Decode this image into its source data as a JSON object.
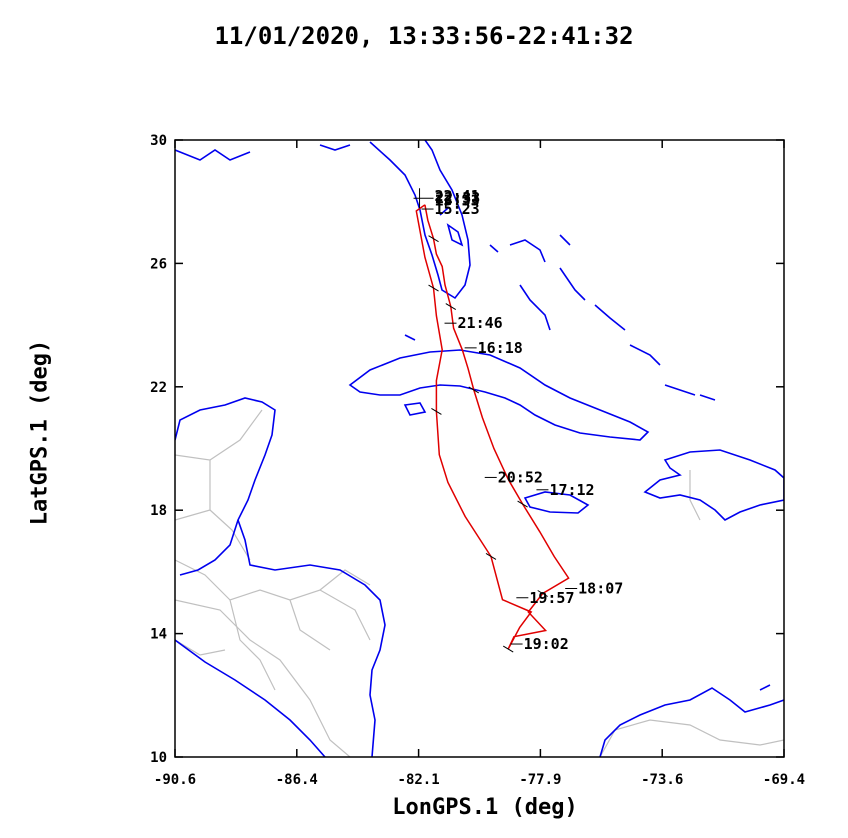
{
  "title": "11/01/2020, 13:33:56-22:41:32",
  "xlabel": "LonGPS.1 (deg)",
  "ylabel": "LatGPS.1 (deg)",
  "colors": {
    "track": "#e00000",
    "coastline": "#0000ee",
    "borders": "#c0c0c0",
    "frame": "#000000"
  },
  "chart_data": {
    "type": "line",
    "title": "11/01/2020, 13:33:56-22:41:32",
    "xlabel": "LonGPS.1 (deg)",
    "ylabel": "LatGPS.1 (deg)",
    "xlim": [
      -90.6,
      -69.4
    ],
    "ylim": [
      10,
      30
    ],
    "xticks": [
      "-90.6",
      "-86.4",
      "-82.1",
      "-77.9",
      "-73.6",
      "-69.4"
    ],
    "yticks": [
      "30",
      "26",
      "22",
      "18",
      "14",
      "10"
    ],
    "track": [
      [
        -81.9,
        27.9
      ],
      [
        -81.8,
        27.4
      ],
      [
        -81.6,
        26.8
      ],
      [
        -81.5,
        26.3
      ],
      [
        -81.3,
        25.9
      ],
      [
        -81.2,
        25.3
      ],
      [
        -81.0,
        24.6
      ],
      [
        -80.9,
        23.9
      ],
      [
        -80.6,
        23.2
      ],
      [
        -80.4,
        22.6
      ],
      [
        -80.2,
        21.9
      ],
      [
        -79.9,
        21.0
      ],
      [
        -79.5,
        20.0
      ],
      [
        -79.0,
        19.0
      ],
      [
        -78.5,
        18.2
      ],
      [
        -77.9,
        17.3
      ],
      [
        -77.4,
        16.5
      ],
      [
        -76.9,
        15.8
      ],
      [
        -77.8,
        15.3
      ],
      [
        -78.3,
        14.7
      ],
      [
        -77.7,
        14.1
      ],
      [
        -78.8,
        13.9
      ],
      [
        -79.0,
        13.5
      ],
      [
        -78.6,
        14.2
      ],
      [
        -78.2,
        14.7
      ],
      [
        -79.2,
        15.1
      ],
      [
        -79.6,
        16.5
      ],
      [
        -80.5,
        17.8
      ],
      [
        -81.1,
        18.9
      ],
      [
        -81.4,
        19.8
      ],
      [
        -81.5,
        21.2
      ],
      [
        -81.5,
        22.2
      ],
      [
        -81.3,
        23.2
      ],
      [
        -81.5,
        24.3
      ],
      [
        -81.6,
        25.2
      ],
      [
        -81.9,
        26.2
      ],
      [
        -82.2,
        27.7
      ],
      [
        -81.9,
        27.9
      ]
    ],
    "annotations": [
      {
        "label": "15:23",
        "lon": -81.6,
        "lat": 27.6
      },
      {
        "label": "21:46",
        "lon": -80.8,
        "lat": 23.9
      },
      {
        "label": "16:18",
        "lon": -80.1,
        "lat": 23.1
      },
      {
        "label": "20:52",
        "lon": -79.4,
        "lat": 18.9
      },
      {
        "label": "17:12",
        "lon": -77.6,
        "lat": 18.5
      },
      {
        "label": "18:07",
        "lon": -76.6,
        "lat": 15.3
      },
      {
        "label": "19:57",
        "lon": -78.3,
        "lat": 15.0
      },
      {
        "label": "19:02",
        "lon": -78.5,
        "lat": 13.5
      }
    ],
    "overlapping_labels": [
      "22:41",
      "22:33",
      "13:33"
    ],
    "overlapping_labels_position": {
      "lon": -81.6,
      "lat": 27.95
    }
  }
}
